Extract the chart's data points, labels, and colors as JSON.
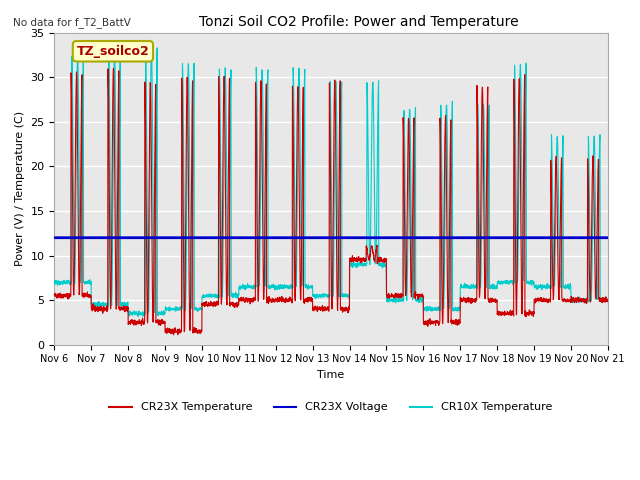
{
  "title": "Tonzi Soil CO2 Profile: Power and Temperature",
  "top_left_text": "No data for f_T2_BattV",
  "ylabel": "Power (V) / Temperature (C)",
  "xlabel": "Time",
  "ylim": [
    0,
    35
  ],
  "xlim": [
    0,
    15
  ],
  "background_color": "#ffffff",
  "plot_bg_color": "#e8e8e8",
  "grid_color": "#ffffff",
  "annotation_box": "TZ_soilco2",
  "annotation_box_bg": "#ffffcc",
  "annotation_box_border": "#aaaa00",
  "x_tick_labels": [
    "Nov 6",
    "Nov 7",
    "Nov 8",
    "Nov 9",
    "Nov 10",
    "Nov 11",
    "Nov 12",
    "Nov 13",
    "Nov 14",
    "Nov 15",
    "Nov 16",
    "Nov 17",
    "Nov 18",
    "Nov 19",
    "Nov 20",
    "Nov 21"
  ],
  "legend_entries": [
    "CR23X Temperature",
    "CR23X Voltage",
    "CR10X Temperature"
  ],
  "voltage_value": 12.0,
  "cr23x_mins": [
    5.5,
    4.0,
    2.5,
    1.5,
    4.5,
    5.0,
    5.0,
    4.0,
    9.5,
    5.5,
    2.5,
    5.0,
    3.5,
    5.0,
    5.0
  ],
  "cr23x_maxs": [
    30.5,
    31.0,
    29.5,
    30.0,
    30.0,
    29.5,
    29.0,
    29.5,
    11.0,
    25.5,
    25.5,
    29.0,
    30.0,
    21.0,
    21.0
  ],
  "cr10x_mins": [
    7.0,
    4.5,
    3.5,
    4.0,
    5.5,
    6.5,
    6.5,
    5.5,
    9.0,
    5.0,
    4.0,
    6.5,
    7.0,
    6.5,
    5.0
  ],
  "cr10x_maxs": [
    32.5,
    33.0,
    33.5,
    31.5,
    31.0,
    31.0,
    31.0,
    29.5,
    29.5,
    26.5,
    27.0,
    27.0,
    31.5,
    23.5,
    23.5
  ],
  "figsize": [
    6.4,
    4.8
  ],
  "dpi": 100
}
